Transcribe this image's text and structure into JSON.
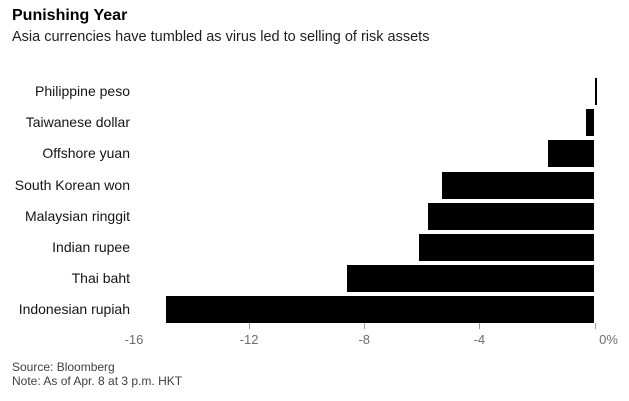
{
  "header": {
    "title": "Punishing Year",
    "subtitle": "Asia currencies have tumbled as virus led to selling of risk assets"
  },
  "chart_data": {
    "type": "bar",
    "orientation": "horizontal",
    "title": "Punishing Year",
    "subtitle": "Asia currencies have tumbled as virus led to selling of risk assets",
    "categories": [
      "Philippine peso",
      "Taiwanese dollar",
      "Offshore yuan",
      "South Korean won",
      "Malaysian ringgit",
      "Indian rupee",
      "Thai baht",
      "Indonesian rupiah"
    ],
    "values": [
      0.1,
      -0.3,
      -1.6,
      -5.3,
      -5.8,
      -6.1,
      -8.6,
      -14.9
    ],
    "unit": "%",
    "xlabel": "",
    "ylabel": "",
    "xlim": [
      -16,
      0.5
    ],
    "x_ticks": [
      {
        "value": -16,
        "label": "-16",
        "mark": false
      },
      {
        "value": -12,
        "label": "-12",
        "mark": true
      },
      {
        "value": -8,
        "label": "-8",
        "mark": true
      },
      {
        "value": -4,
        "label": "-4",
        "mark": true
      },
      {
        "value": 0,
        "label": "0%",
        "mark": true
      }
    ],
    "grid": false,
    "legend": false,
    "bar_color": "#000000",
    "tick_mark_color": "#9b9b9b",
    "tick_label_color": "#6e6e6e"
  },
  "footer": {
    "source": "Source: Bloomberg",
    "note": "Note: As of Apr. 8 at 3 p.m. HKT"
  }
}
